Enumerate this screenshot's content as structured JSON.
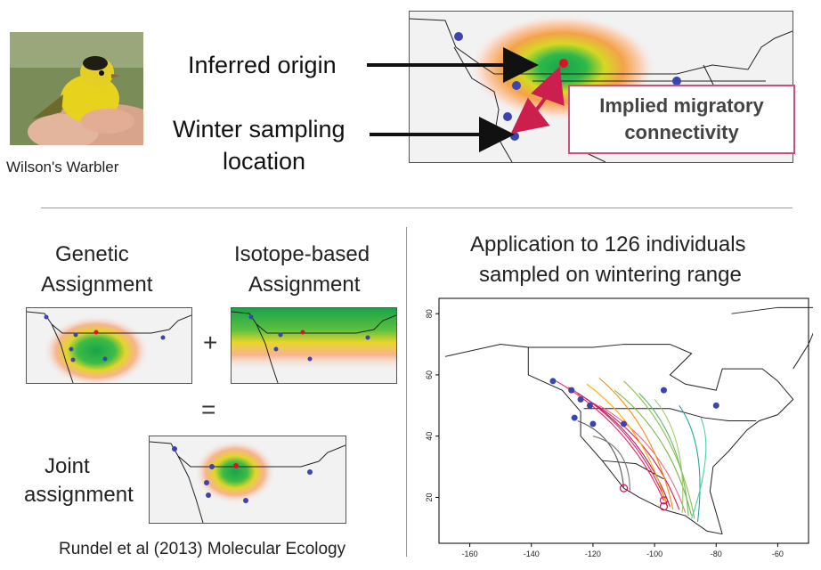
{
  "bird_caption": "Wilson's Warbler",
  "inferred_origin_label": "Inferred origin",
  "winter_sampling_label_line1": "Winter sampling",
  "winter_sampling_label_line2": "location",
  "implied_line1": "Implied migratory",
  "implied_line2": "connectivity",
  "genetic_line1": "Genetic",
  "genetic_line2": "Assignment",
  "isotope_line1": "Isotope-based",
  "isotope_line2": "Assignment",
  "plus_sign": "+",
  "equals_sign": "=",
  "joint_line1": "Joint",
  "joint_line2": "assignment",
  "citation": "Rundel et al (2013) Molecular Ecology",
  "app_title_line1": "Application to 126 individuals",
  "app_title_line2": "sampled on wintering range",
  "chart_data": {
    "type": "map",
    "x_ticks": [
      "-160",
      "-140",
      "-120",
      "-100",
      "-80",
      "-60"
    ],
    "y_ticks": [
      "20",
      "40",
      "60",
      "80"
    ],
    "xlim": [
      -170,
      -50
    ],
    "ylim": [
      5,
      85
    ]
  },
  "colors": {
    "highlight_box": "#cf4f7b",
    "arrow_red": "#cc1f4e",
    "dot_blue": "#3a45b0",
    "dot_red": "#e0102a"
  }
}
